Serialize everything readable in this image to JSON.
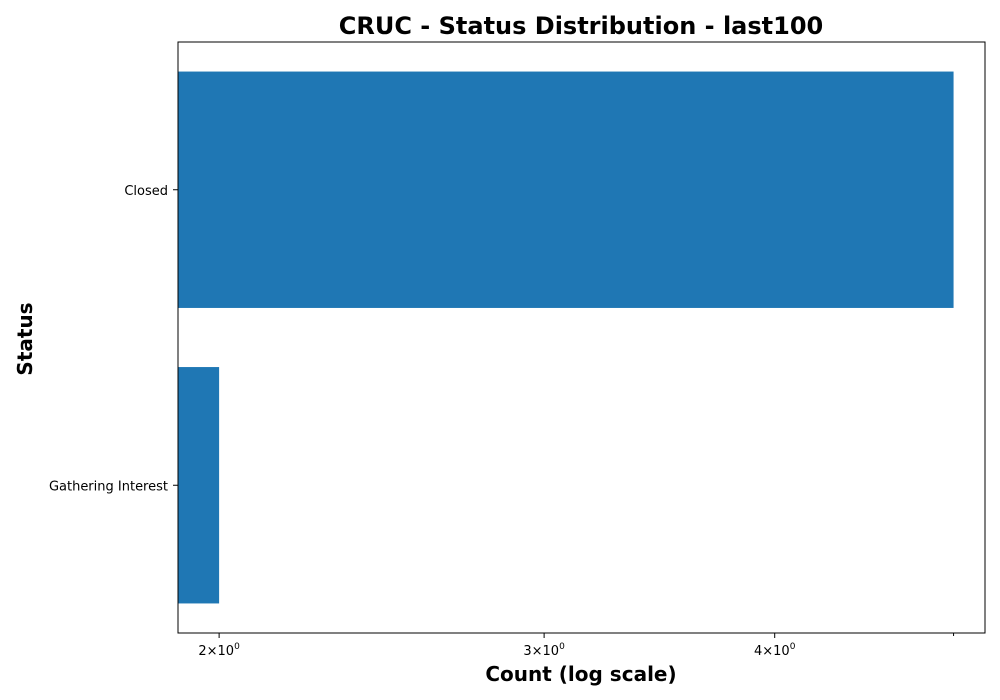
{
  "chart_data": {
    "type": "bar",
    "orientation": "horizontal",
    "title": "CRUC - Status Distribution - last100",
    "xlabel": "Count (log scale)",
    "ylabel": "Status",
    "xscale": "log",
    "xlim": [
      1.9,
      5.2
    ],
    "categories": [
      "Closed",
      "Gathering Interest"
    ],
    "values": [
      5,
      2
    ],
    "x_ticks": [
      {
        "value": 2,
        "base": "2",
        "exp": "0"
      },
      {
        "value": 3,
        "base": "3",
        "exp": "0"
      },
      {
        "value": 4,
        "base": "4",
        "exp": "0"
      }
    ],
    "grid": false,
    "legend": "none",
    "colors": {
      "bar": "#1f77b4",
      "axes": "#000000",
      "background": "#ffffff"
    }
  }
}
